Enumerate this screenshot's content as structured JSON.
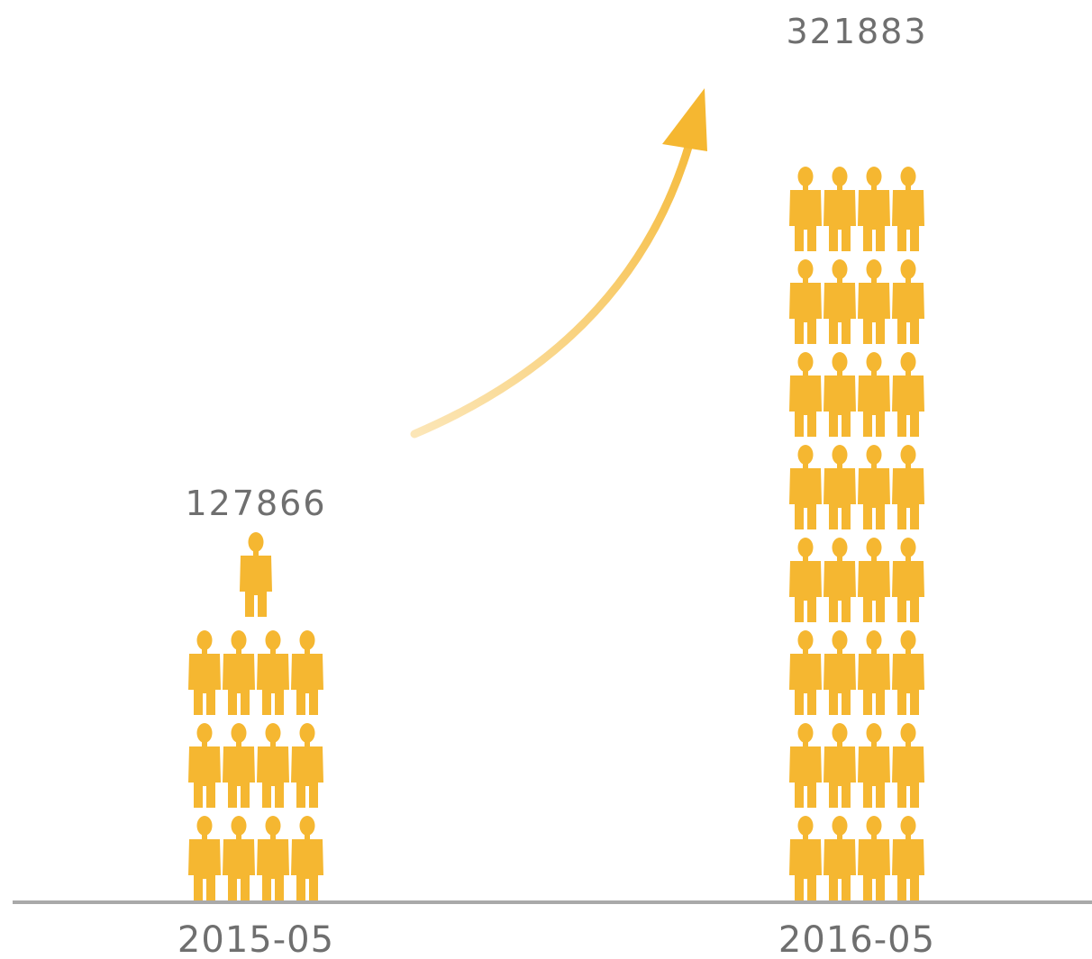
{
  "chart_data": {
    "type": "bar",
    "style": "pictogram",
    "categories": [
      "2015-05",
      "2016-05"
    ],
    "values": [
      127866,
      321883
    ],
    "data_labels": [
      "127866",
      "321883"
    ],
    "xlabel": "",
    "ylabel": "",
    "icon": "person-icon",
    "grid": false,
    "legend": "none",
    "trend_arrow": "up",
    "colors": {
      "icon": "#f5b731",
      "arrow": "#f5b731",
      "baseline": "#a9a9a9",
      "text": "#6f6f6f"
    }
  }
}
